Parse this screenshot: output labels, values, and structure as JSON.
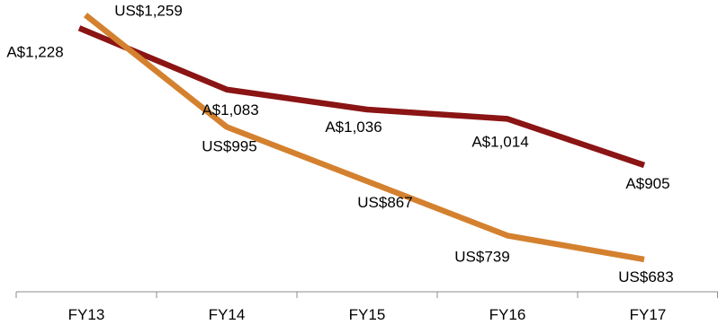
{
  "chart_data": {
    "type": "line",
    "categories": [
      "FY13",
      "FY14",
      "FY15",
      "FY16",
      "FY17"
    ],
    "series": [
      {
        "color": "#8b1414",
        "values": [
          1228,
          1083,
          1036,
          1014,
          905
        ],
        "labels": [
          "A$1,228",
          "A$1,083",
          "A$1,036",
          "A$1,014",
          "A$905"
        ]
      },
      {
        "color": "#d4812f",
        "values": [
          1259,
          995,
          867,
          739,
          683
        ],
        "labels": [
          "US$1,259",
          "US$995",
          "US$867",
          "US$739",
          "US$683"
        ]
      }
    ],
    "ylim": [
      560,
      1290
    ],
    "grid": false,
    "legend": "none"
  }
}
